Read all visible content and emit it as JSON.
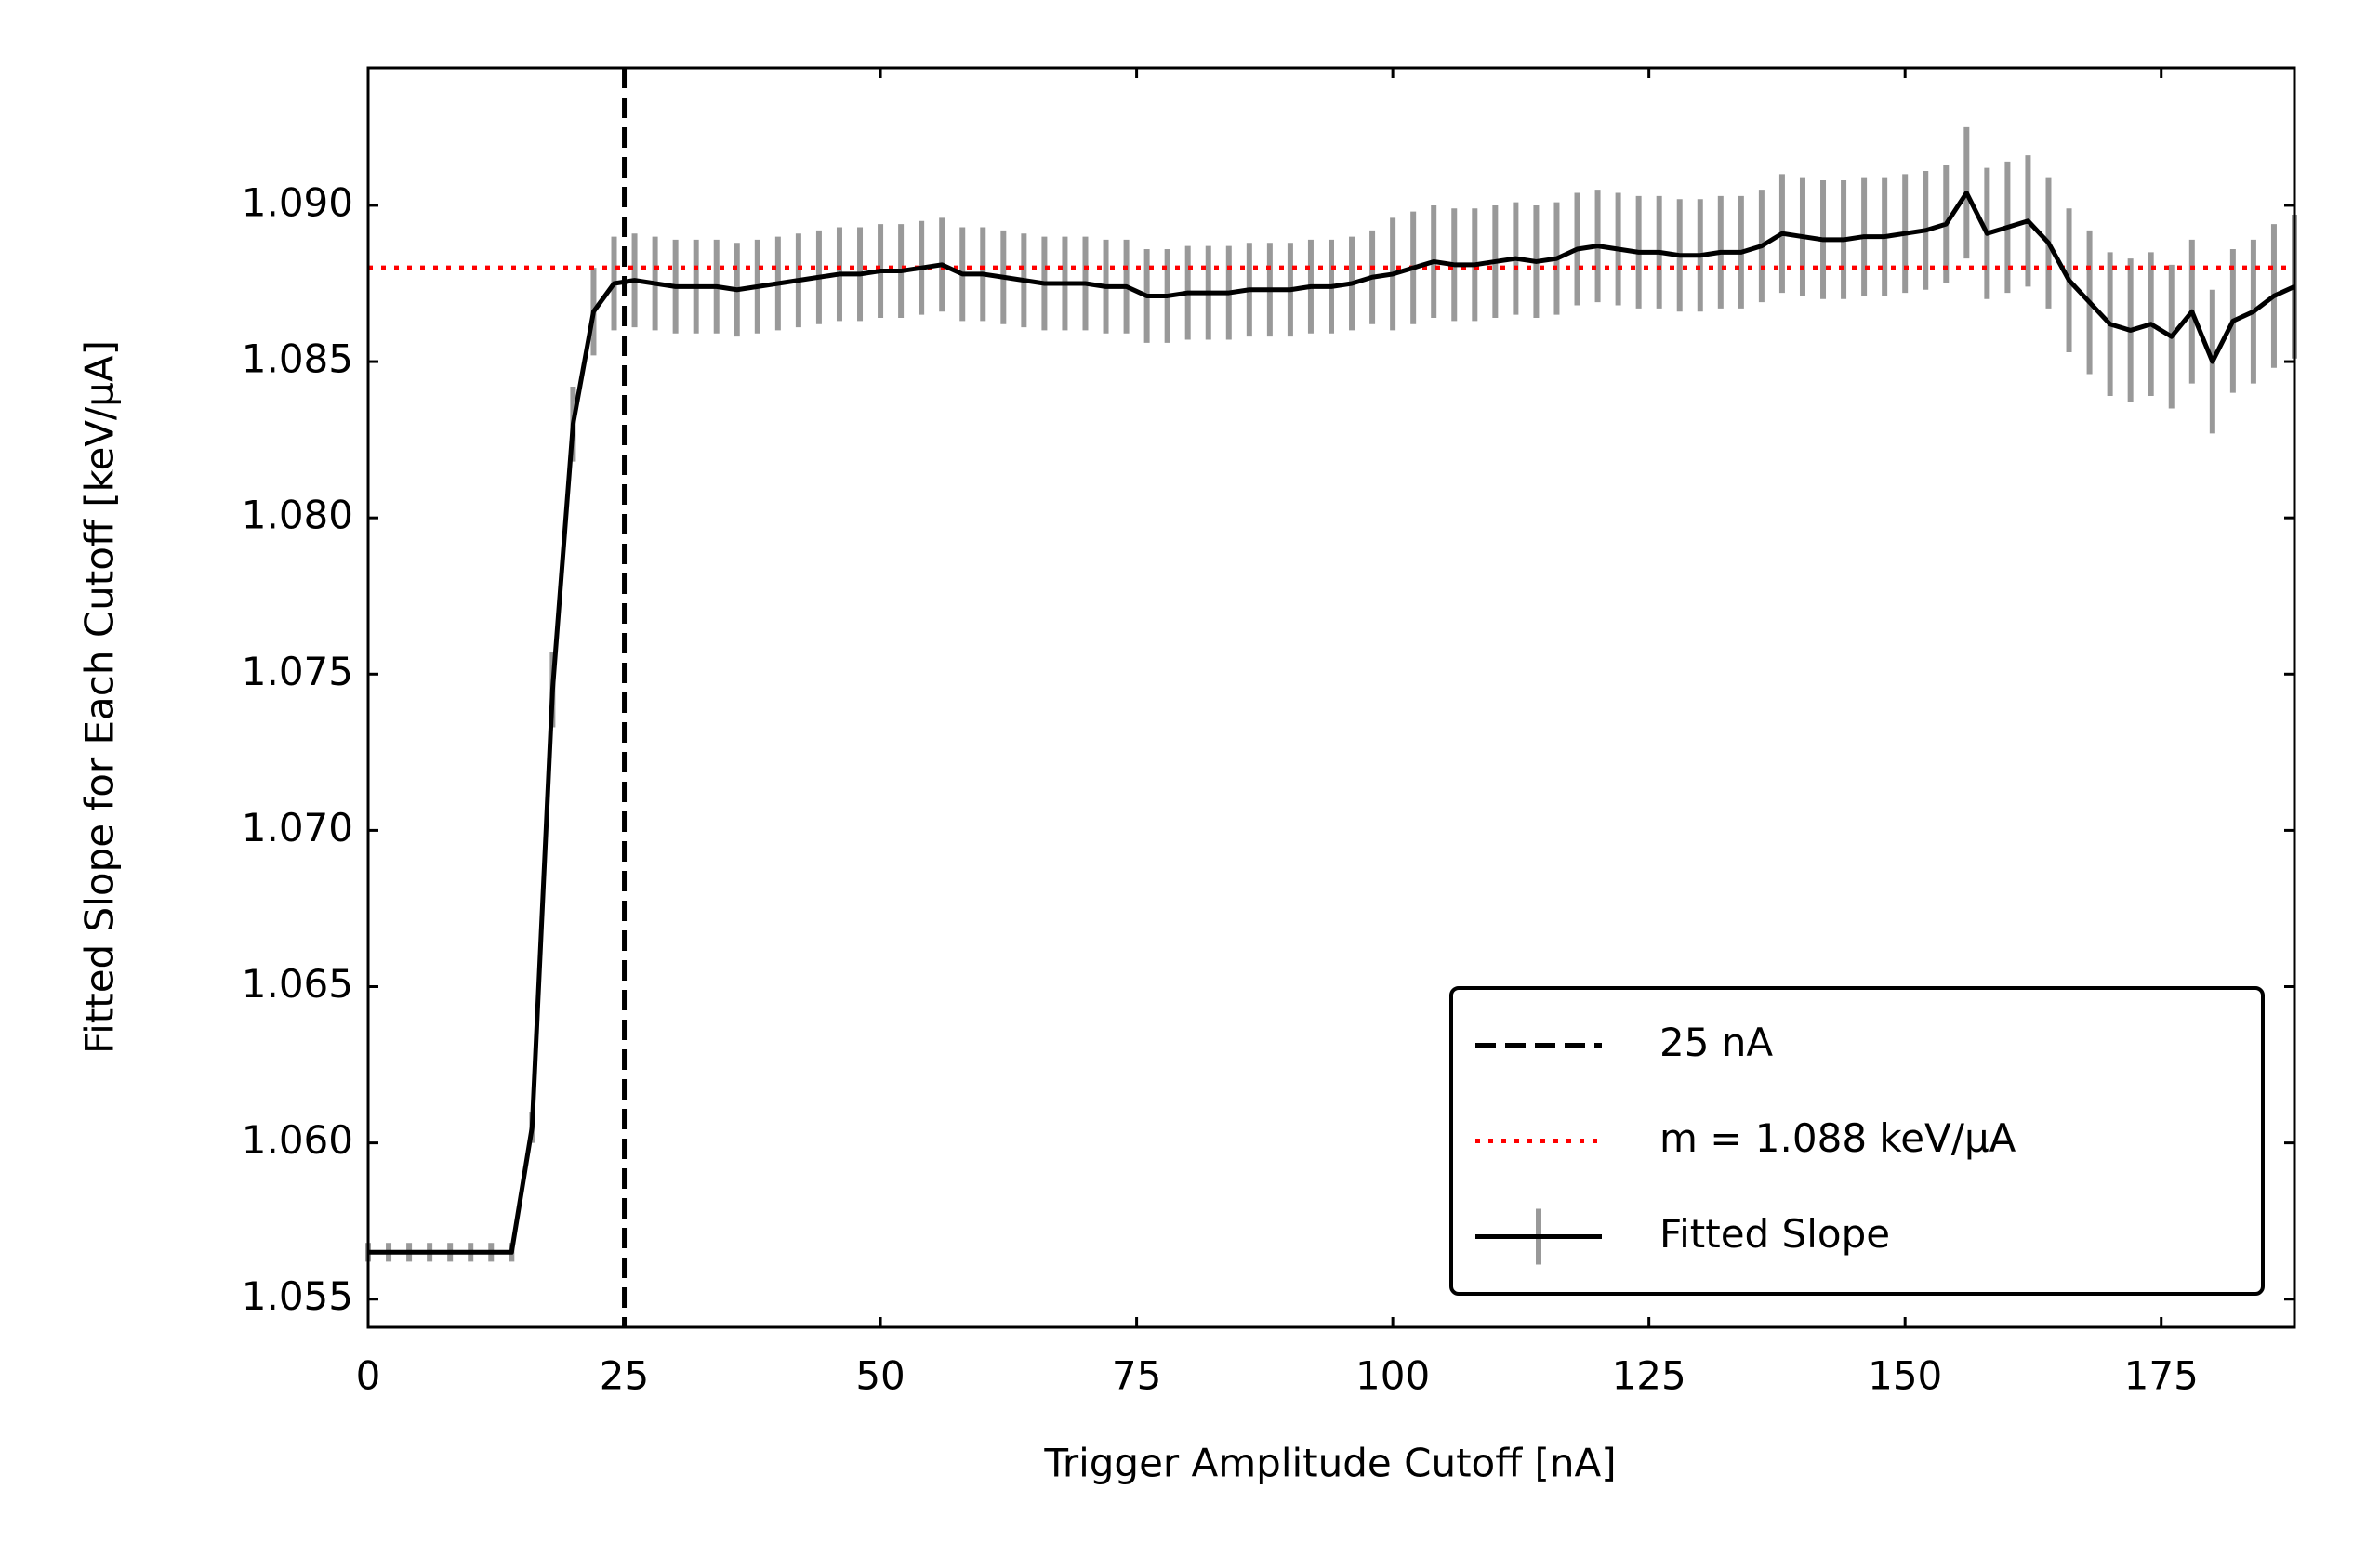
{
  "chart_data": {
    "type": "line",
    "x_label": "Trigger Amplitude Cutoff [nA]",
    "y_label": "Fitted Slope for Each Cutoff [keV/μA]",
    "xlim": [
      0,
      188
    ],
    "ylim": [
      1.0541,
      1.0944
    ],
    "xticks": [
      0,
      25,
      50,
      75,
      100,
      125,
      150,
      175
    ],
    "yticks": [
      1.055,
      {
        "value": 1.06,
        "label": "1.060"
      },
      1.065,
      {
        "value": 1.07,
        "label": "1.070"
      },
      1.075,
      {
        "value": 1.08,
        "label": "1.080"
      },
      1.085,
      {
        "value": 1.09,
        "label": "1.090"
      }
    ],
    "legend": "lower right",
    "reference_lines": [
      {
        "name": "25 nA",
        "orientation": "vertical",
        "value": 25,
        "color": "#000000",
        "style": "dashed"
      },
      {
        "name": "m = 1.088 keV/μA",
        "orientation": "horizontal",
        "value": 1.088,
        "color": "#ff0000",
        "style": "dotted"
      }
    ],
    "series": [
      {
        "name": "Fitted Slope",
        "color": "#000000",
        "error_color": "#999999",
        "x": [
          0,
          2,
          4,
          6,
          8,
          10,
          12,
          14,
          16,
          18,
          20,
          22,
          24,
          26,
          28,
          30,
          32,
          34,
          36,
          38,
          40,
          42,
          44,
          46,
          48,
          50,
          52,
          54,
          56,
          58,
          60,
          62,
          64,
          66,
          68,
          70,
          72,
          74,
          76,
          78,
          80,
          82,
          84,
          86,
          88,
          90,
          92,
          94,
          96,
          98,
          100,
          102,
          104,
          106,
          108,
          110,
          112,
          114,
          116,
          118,
          120,
          122,
          124,
          126,
          128,
          130,
          132,
          134,
          136,
          138,
          140,
          142,
          144,
          146,
          148,
          150,
          152,
          154,
          156,
          158,
          160,
          162,
          164,
          166,
          168,
          170,
          172,
          174,
          176,
          178,
          180,
          182,
          184,
          186,
          188
        ],
        "values": [
          1.0565,
          1.0565,
          1.0565,
          1.0565,
          1.0565,
          1.0565,
          1.0565,
          1.0565,
          1.0605,
          1.0745,
          1.083,
          1.0866,
          1.0875,
          1.0876,
          1.0875,
          1.0874,
          1.0874,
          1.0874,
          1.0873,
          1.0874,
          1.0875,
          1.0876,
          1.0877,
          1.0878,
          1.0878,
          1.0879,
          1.0879,
          1.088,
          1.0881,
          1.0878,
          1.0878,
          1.0877,
          1.0876,
          1.0875,
          1.0875,
          1.0875,
          1.0874,
          1.0874,
          1.0871,
          1.0871,
          1.0872,
          1.0872,
          1.0872,
          1.0873,
          1.0873,
          1.0873,
          1.0874,
          1.0874,
          1.0875,
          1.0877,
          1.0878,
          1.088,
          1.0882,
          1.0881,
          1.0881,
          1.0882,
          1.0883,
          1.0882,
          1.0883,
          1.0886,
          1.0887,
          1.0886,
          1.0885,
          1.0885,
          1.0884,
          1.0884,
          1.0885,
          1.0885,
          1.0887,
          1.0891,
          1.089,
          1.0889,
          1.0889,
          1.089,
          1.089,
          1.0891,
          1.0892,
          1.0894,
          1.0904,
          1.0891,
          1.0893,
          1.0895,
          1.0888,
          1.0876,
          1.0869,
          1.0862,
          1.086,
          1.0862,
          1.0858,
          1.0866,
          1.085,
          1.0863,
          1.0866,
          1.0871,
          1.0874
        ],
        "errors": [
          0.0003,
          0.0003,
          0.0003,
          0.0003,
          0.0003,
          0.0003,
          0.0003,
          0.0003,
          0.0005,
          0.0012,
          0.0012,
          0.0014,
          0.0015,
          0.0015,
          0.0015,
          0.0015,
          0.0015,
          0.0015,
          0.0015,
          0.0015,
          0.0015,
          0.0015,
          0.0015,
          0.0015,
          0.0015,
          0.0015,
          0.0015,
          0.0015,
          0.0015,
          0.0015,
          0.0015,
          0.0015,
          0.0015,
          0.0015,
          0.0015,
          0.0015,
          0.0015,
          0.0015,
          0.0015,
          0.0015,
          0.0015,
          0.0015,
          0.0015,
          0.0015,
          0.0015,
          0.0015,
          0.0015,
          0.0015,
          0.0015,
          0.0015,
          0.0018,
          0.0018,
          0.0018,
          0.0018,
          0.0018,
          0.0018,
          0.0018,
          0.0018,
          0.0018,
          0.0018,
          0.0018,
          0.0018,
          0.0018,
          0.0018,
          0.0018,
          0.0018,
          0.0018,
          0.0018,
          0.0018,
          0.0019,
          0.0019,
          0.0019,
          0.0019,
          0.0019,
          0.0019,
          0.0019,
          0.0019,
          0.0019,
          0.0021,
          0.0021,
          0.0021,
          0.0021,
          0.0021,
          0.0023,
          0.0023,
          0.0023,
          0.0023,
          0.0023,
          0.0023,
          0.0023,
          0.0023,
          0.0023,
          0.0023,
          0.0023,
          0.0023
        ]
      }
    ]
  }
}
